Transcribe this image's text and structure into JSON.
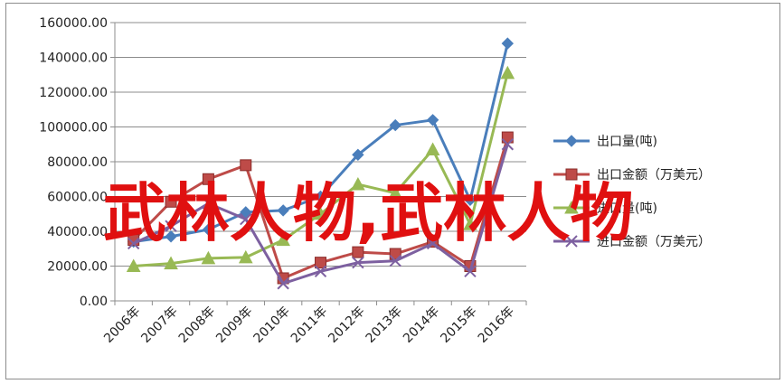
{
  "chart_data": {
    "type": "line",
    "title": "",
    "xlabel": "",
    "ylabel": "",
    "categories": [
      "2006年",
      "2007年",
      "2008年",
      "2009年",
      "2010年",
      "2011年",
      "2012年",
      "2013年",
      "2014年",
      "2015年",
      "2016年"
    ],
    "y_tick_labels": [
      "0.00",
      "20000.00",
      "40000.00",
      "60000.00",
      "80000.00",
      "100000.00",
      "120000.00",
      "140000.00",
      "160000.00"
    ],
    "ylim": [
      0,
      160000
    ],
    "grid": true,
    "legend_position": "right",
    "series": [
      {
        "name": "出口量(吨)",
        "color": "#4a7ebb",
        "marker": "diamond",
        "values": [
          34000,
          37000,
          41000,
          51000,
          52000,
          60000,
          84000,
          101000,
          104000,
          58000,
          148000
        ]
      },
      {
        "name": "出口金额（万美元）",
        "color": "#be4b48",
        "marker": "square",
        "values": [
          35000,
          57000,
          70000,
          78000,
          13000,
          22000,
          28000,
          27000,
          34000,
          20000,
          94000
        ]
      },
      {
        "name": "进口量(吨)",
        "color": "#98b954",
        "marker": "triangle",
        "values": [
          20000,
          21500,
          24500,
          25000,
          35000,
          50000,
          67000,
          62000,
          87000,
          44000,
          131000
        ]
      },
      {
        "name": "进口金额（万美元）",
        "color": "#7d60a0",
        "marker": "x",
        "values": [
          33000,
          43000,
          56000,
          47000,
          10000,
          17000,
          22000,
          23000,
          33000,
          17000,
          90000
        ]
      }
    ]
  },
  "watermark": "武林人物,武林人物"
}
